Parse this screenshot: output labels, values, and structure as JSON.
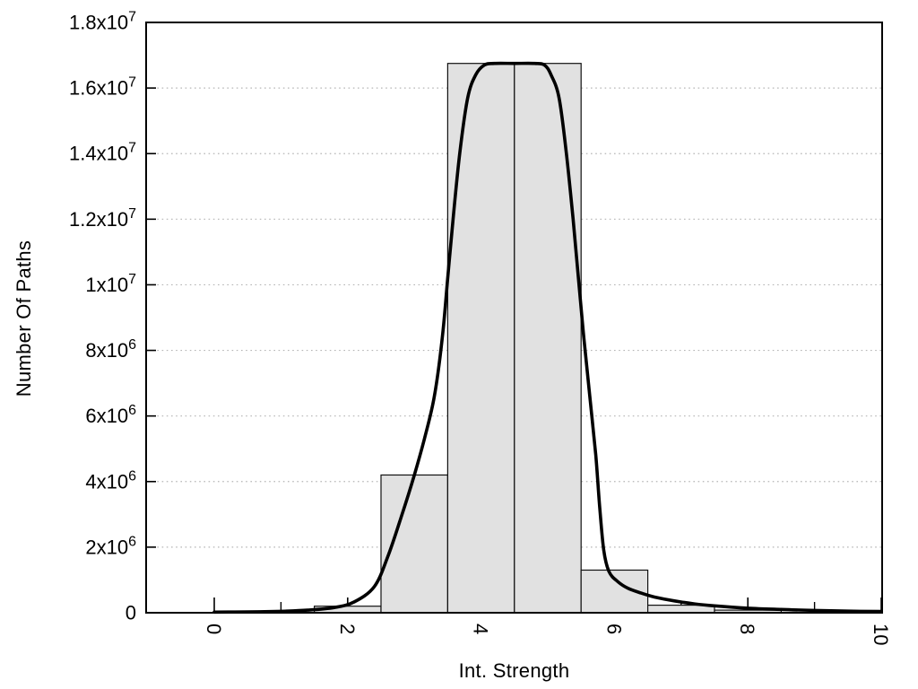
{
  "page": {
    "background_color": "#ffffff",
    "text_color": "#000000"
  },
  "chart_data": {
    "type": "bar",
    "subtype": "histogram-with-density-curve",
    "title": "",
    "xlabel": "Int. Strength",
    "ylabel": "Number Of Paths",
    "xlim": [
      -1.03,
      10.05
    ],
    "ylim": [
      0,
      18000000
    ],
    "grid": "horizontal dotted lines at labeled y ticks",
    "legend": "none",
    "x_major_ticks": [
      0,
      2,
      4,
      6,
      8,
      10
    ],
    "x_major_tick_labels": [
      "0",
      "2",
      "4",
      "6",
      "8",
      "10"
    ],
    "x_minor_ticks": [
      1,
      3,
      5,
      7,
      9
    ],
    "x_tick_label_rotation_deg": 90,
    "y_ticks": [
      {
        "value": 0,
        "base": "0",
        "exp": ""
      },
      {
        "value": 2000000,
        "base": "2x10",
        "exp": "6"
      },
      {
        "value": 4000000,
        "base": "4x10",
        "exp": "6"
      },
      {
        "value": 6000000,
        "base": "6x10",
        "exp": "6"
      },
      {
        "value": 8000000,
        "base": "8x10",
        "exp": "6"
      },
      {
        "value": 10000000,
        "base": "1x10",
        "exp": "7"
      },
      {
        "value": 12000000,
        "base": "1.2x10",
        "exp": "7"
      },
      {
        "value": 14000000,
        "base": "1.4x10",
        "exp": "7"
      },
      {
        "value": 16000000,
        "base": "1.6x10",
        "exp": "7"
      },
      {
        "value": 18000000,
        "base": "1.8x10",
        "exp": "7"
      }
    ],
    "gridline_values": [
      2000000,
      4000000,
      6000000,
      8000000,
      10000000,
      12000000,
      14000000,
      16000000
    ],
    "bars": {
      "bin_width": 1,
      "fill_color": "#e1e1e1",
      "edge_color": "#111111",
      "data": [
        {
          "center": 2,
          "value": 200000
        },
        {
          "center": 3,
          "value": 4200000
        },
        {
          "center": 4,
          "value": 16750000
        },
        {
          "center": 5,
          "value": 16750000
        },
        {
          "center": 6,
          "value": 1300000
        },
        {
          "center": 7,
          "value": 230000
        },
        {
          "center": 8,
          "value": 80000
        }
      ]
    },
    "curve": {
      "color": "#000000",
      "width": 3.6,
      "points": [
        [
          0.0,
          20000
        ],
        [
          0.5,
          25000
        ],
        [
          1.0,
          45000
        ],
        [
          1.4,
          80000
        ],
        [
          1.8,
          160000
        ],
        [
          2.1,
          330000
        ],
        [
          2.4,
          800000
        ],
        [
          2.6,
          1700000
        ],
        [
          2.8,
          2900000
        ],
        [
          3.0,
          4200000
        ],
        [
          3.15,
          5300000
        ],
        [
          3.3,
          6600000
        ],
        [
          3.42,
          8400000
        ],
        [
          3.5,
          10200000
        ],
        [
          3.58,
          12000000
        ],
        [
          3.68,
          14000000
        ],
        [
          3.8,
          15700000
        ],
        [
          3.92,
          16400000
        ],
        [
          4.05,
          16700000
        ],
        [
          4.2,
          16750000
        ],
        [
          4.5,
          16750000
        ],
        [
          4.8,
          16750000
        ],
        [
          4.95,
          16700000
        ],
        [
          5.05,
          16400000
        ],
        [
          5.17,
          15700000
        ],
        [
          5.28,
          14000000
        ],
        [
          5.38,
          12000000
        ],
        [
          5.46,
          10200000
        ],
        [
          5.54,
          8400000
        ],
        [
          5.63,
          6600000
        ],
        [
          5.72,
          4800000
        ],
        [
          5.78,
          3200000
        ],
        [
          5.84,
          1900000
        ],
        [
          5.92,
          1250000
        ],
        [
          6.05,
          950000
        ],
        [
          6.2,
          750000
        ],
        [
          6.4,
          600000
        ],
        [
          6.6,
          480000
        ],
        [
          6.9,
          360000
        ],
        [
          7.2,
          270000
        ],
        [
          7.5,
          210000
        ],
        [
          8.0,
          140000
        ],
        [
          8.5,
          100000
        ],
        [
          9.0,
          70000
        ],
        [
          9.5,
          50000
        ],
        [
          10.0,
          40000
        ]
      ]
    },
    "colors": {
      "axis": "#000000",
      "grid": "#b5b5b5",
      "bar_fill": "#e1e1e1",
      "curve": "#000000"
    }
  }
}
